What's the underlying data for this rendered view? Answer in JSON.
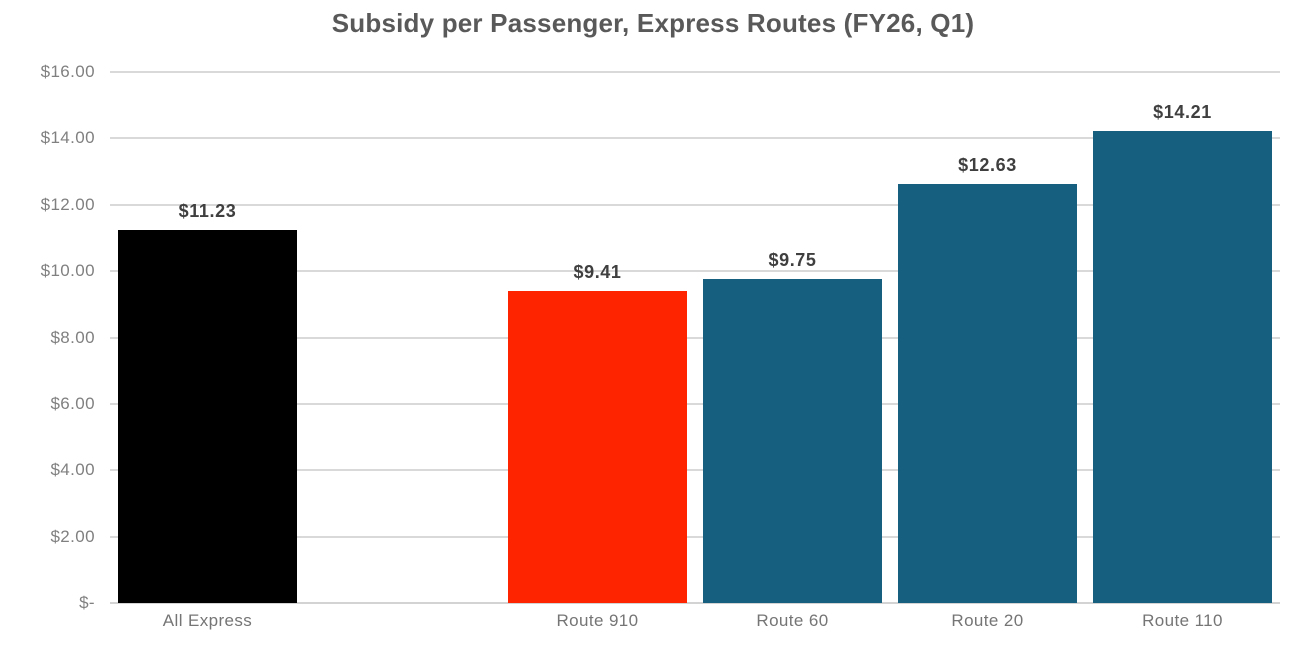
{
  "chart_data": {
    "type": "bar",
    "title": "Subsidy per Passenger, Express Routes (FY26, Q1)",
    "xlabel": "",
    "ylabel": "",
    "ylim": [
      0,
      16
    ],
    "ytick_interval": 2,
    "grid": true,
    "legend": false,
    "yticks": [
      {
        "value": 16,
        "label": "$16.00"
      },
      {
        "value": 14,
        "label": "$14.00"
      },
      {
        "value": 12,
        "label": "$12.00"
      },
      {
        "value": 10,
        "label": "$10.00"
      },
      {
        "value": 8,
        "label": "$8.00"
      },
      {
        "value": 6,
        "label": "$6.00"
      },
      {
        "value": 4,
        "label": "$4.00"
      },
      {
        "value": 2,
        "label": "$2.00"
      },
      {
        "value": 0,
        "label": "$-"
      }
    ],
    "slot_count": 6,
    "categories": [
      "All Express",
      "Route 910",
      "Route 60",
      "Route 20",
      "Route 110"
    ],
    "values": [
      11.23,
      9.41,
      9.75,
      12.63,
      14.21
    ],
    "bars": [
      {
        "category": "All Express",
        "value": 11.23,
        "data_label": "$11.23",
        "color": "#000000",
        "slot": 0
      },
      {
        "category": "Route 910",
        "value": 9.41,
        "data_label": "$9.41",
        "color": "#ff2400",
        "slot": 2
      },
      {
        "category": "Route 60",
        "value": 9.75,
        "data_label": "$9.75",
        "color": "#165f7e",
        "slot": 3
      },
      {
        "category": "Route 20",
        "value": 12.63,
        "data_label": "$12.63",
        "color": "#165f7e",
        "slot": 4
      },
      {
        "category": "Route 110",
        "value": 14.21,
        "data_label": "$14.21",
        "color": "#165f7e",
        "slot": 5
      }
    ],
    "colors": {
      "bar_black": "#000000",
      "bar_red": "#ff2400",
      "bar_teal": "#165f7e",
      "gridline": "#d9d9d9",
      "title_text": "#595959",
      "data_label_text": "#3f3f3f",
      "axis_label_text": "#757575",
      "background": "#ffffff"
    }
  }
}
